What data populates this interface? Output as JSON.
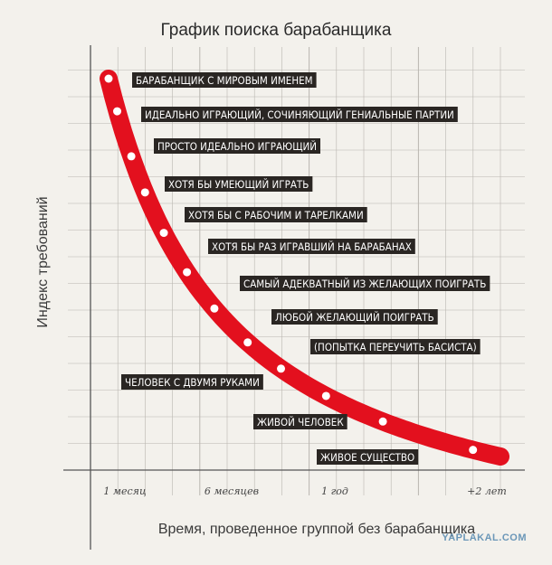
{
  "chart_data": {
    "type": "line",
    "title": "График поиска барабанщика",
    "xlabel": "Время, проведенное группой без барабанщика",
    "ylabel": "Индекс требований",
    "x_ticks": [
      "1 месяц",
      "6 месяцев",
      "1 год",
      "+2 лет"
    ],
    "points": [
      {
        "label": "БАРАБАНЩИК С МИРОВЫМ ИМЕНЕМ"
      },
      {
        "label": "ИДЕАЛЬНО ИГРАЮЩИЙ, СОЧИНЯЮЩИЙ ГЕНИАЛЬНЫЕ ПАРТИИ"
      },
      {
        "label": "ПРОСТО ИДЕАЛЬНО ИГРАЮЩИЙ"
      },
      {
        "label": "ХОТЯ БЫ УМЕЮЩИЙ ИГРАТЬ"
      },
      {
        "label": "ХОТЯ БЫ С РАБОЧИМ И ТАРЕЛКАМИ"
      },
      {
        "label": "ХОТЯ БЫ РАЗ ИГРАВШИЙ НА БАРАБАНАХ"
      },
      {
        "label": "САМЫЙ АДЕКВАТНЫЙ ИЗ ЖЕЛАЮЩИХ ПОИГРАТЬ"
      },
      {
        "label": "ЛЮБОЙ ЖЕЛАЮЩИЙ ПОИГРАТЬ"
      },
      {
        "label": "(ПОПЫТКА ПЕРЕУЧИТЬ БАСИСТА)"
      },
      {
        "label": "ЧЕЛОВЕК С ДВУМЯ РУКАМИ"
      },
      {
        "label": "ЖИВОЙ ЧЕЛОВЕК"
      },
      {
        "label": "ЖИВОЕ СУЩЕСТВО"
      }
    ],
    "colors": {
      "curve": "#e3101e",
      "label_bg": "#2a2623",
      "grid": "#b9b6b0"
    }
  },
  "watermark": "YAPLAKAL.COM"
}
